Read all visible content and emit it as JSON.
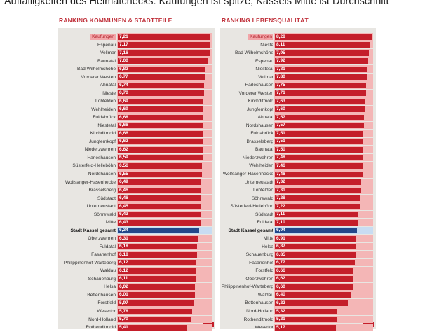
{
  "title": "Auffälligkeiten des Heimatchecks: Kaufungen ist spitze, Kassels Mitte ist Durchschnitt",
  "colors": {
    "bar": "#c41e2a",
    "highlight_bar": "#24478a",
    "stripe": "#f4b6b6",
    "header": "#c0303a"
  },
  "chart_data": [
    {
      "type": "bar",
      "orientation": "horizontal",
      "title": "RANKING KOMMUNEN & STADTTEILE",
      "highlight_top": "Kaufungen",
      "highlight_total": "Stadt Kassel gesamt",
      "categories": [
        "Kaufungen",
        "Espenau",
        "Vellmar",
        "Baunatal",
        "Bad Wilhelmshöhe",
        "Vorderer Westen",
        "Ahnatal",
        "Nieste",
        "Lohfelden",
        "Wehlheiden",
        "Fuldabrück",
        "Niestetal",
        "Kirchditmold",
        "Jungfernkopf",
        "Niederzwehren",
        "Harleshausen",
        "Süsterfeld-Helleböhn",
        "Nordshausen",
        "Wolfsanger-Hasenhecke",
        "Brasselsberg",
        "Südstadt",
        "Unterneustadt",
        "Söhrewald",
        "Mitte",
        "Stadt Kassel gesamt",
        "Oberzwehren",
        "Fuldatal",
        "Fasanenhof",
        "Philippinenhof-Warteberg",
        "Waldau",
        "Schauenburg",
        "Helsa",
        "Bettenhausen",
        "Forstfeld",
        "Wesertor",
        "Nord-Holland",
        "Rothenditmold"
      ],
      "values": [
        "7,21",
        "7,17",
        "7,16",
        "7,00",
        "6,82",
        "6,77",
        "6,74",
        "6,70",
        "6,69",
        "6,69",
        "6,68",
        "6,66",
        "6,66",
        "6,62",
        "6,62",
        "6,59",
        "6,56",
        "6,55",
        "6,49",
        "6,46",
        "6,46",
        "6,45",
        "6,43",
        "6,43",
        "6,34",
        "6,31",
        "6,18",
        "6,18",
        "6,12",
        "6,12",
        "6,11",
        "6,02",
        "6,01",
        "5,97",
        "5,78",
        "5,70",
        "5,41"
      ]
    },
    {
      "type": "bar",
      "orientation": "horizontal",
      "title": "RANKING LEBENSQUALITÄT",
      "highlight_top": "Kaufungen",
      "highlight_total": "Stadt Kassel gesamt",
      "categories": [
        "Kaufungen",
        "Nieste",
        "Bad Wilhelmshöhe",
        "Espenau",
        "Niestetal",
        "Vellmar",
        "Harleshausen",
        "Vorderer Westen",
        "Kirchditmold",
        "Jungfernkopf",
        "Ahnatal",
        "Nordshausen",
        "Fuldabrück",
        "Brasselsberg",
        "Baunatal",
        "Niederzwehren",
        "Wehlheiden",
        "Wolfsanger-Hasenhecke",
        "Unterneustadt",
        "Lohfelden",
        "Söhrewald",
        "Süsterfeld-Helleböhn",
        "Südstadt",
        "Fuldatal",
        "Stadt Kassel gesamt",
        "Mitte",
        "Helsa",
        "Schauenburg",
        "Fasanenhof",
        "Forstfeld",
        "Oberzwehren",
        "Philippinenhof-Warteberg",
        "Waldau",
        "Bettenhausen",
        "Nord-Holland",
        "Rothenditmold",
        "Wesertor"
      ],
      "values": [
        "8,28",
        "8,11",
        "7,95",
        "7,92",
        "7,81",
        "7,80",
        "7,75",
        "7,71",
        "7,63",
        "7,60",
        "7,57",
        "7,57",
        "7,51",
        "7,51",
        "7,50",
        "7,48",
        "7,46",
        "7,46",
        "7,32",
        "7,31",
        "7,28",
        "7,22",
        "7,11",
        "7,10",
        "6,94",
        "6,91",
        "6,87",
        "6,85",
        "6,77",
        "6,66",
        "6,62",
        "6,60",
        "6,40",
        "6,22",
        "5,32",
        "5,21",
        "5,17"
      ]
    }
  ]
}
